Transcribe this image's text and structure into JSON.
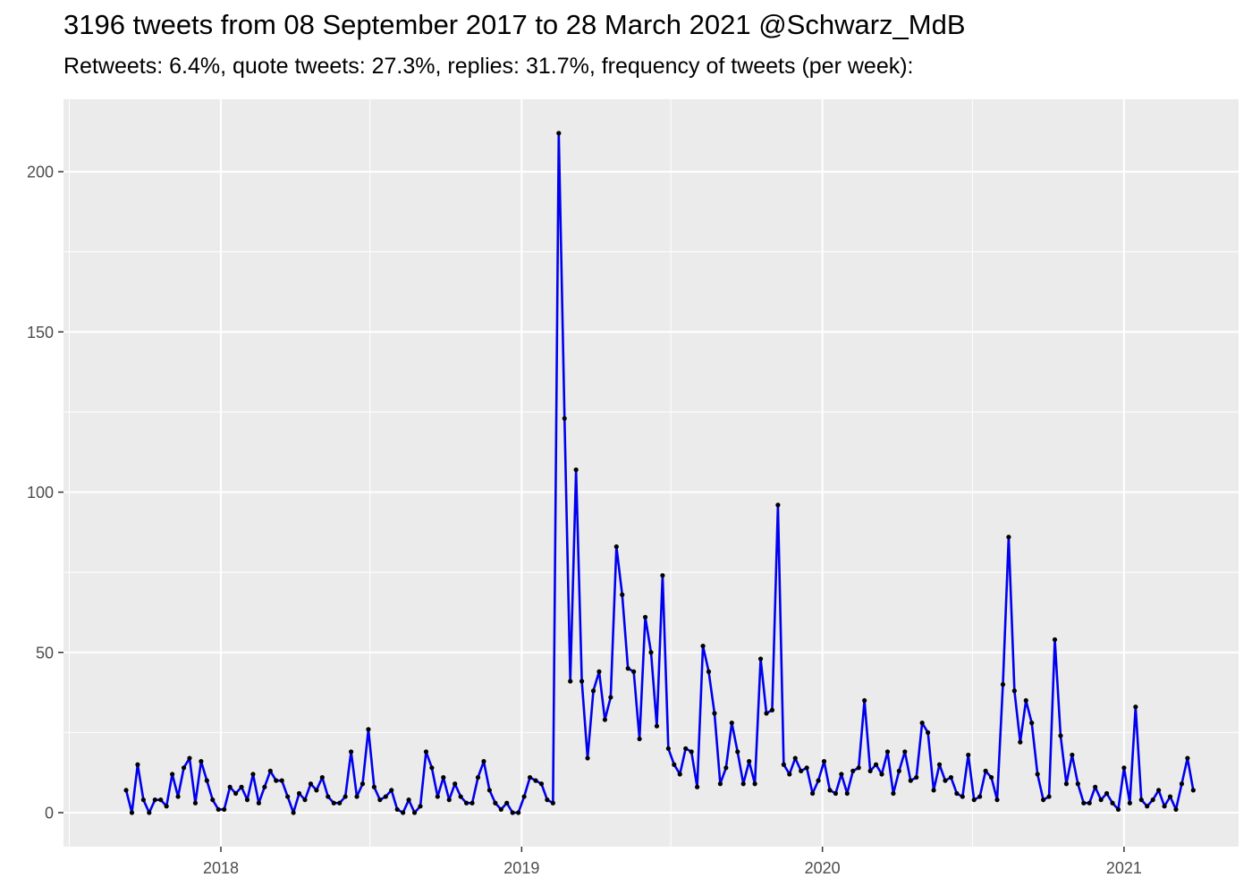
{
  "title": "3196 tweets from 08 September 2017 to 28 March 2021 @Schwarz_MdB",
  "subtitle": "Retweets: 6.4%, quote tweets: 27.3%, replies: 31.7%, frequency of tweets (per week):",
  "chart_data": {
    "type": "line",
    "title": "3196 tweets from 08 September 2017 to 28 March 2021 @Schwarz_MdB",
    "subtitle": "Retweets: 6.4%, quote tweets: 27.3%, replies: 31.7%, frequency of tweets (per week):",
    "xlabel": "",
    "ylabel": "",
    "x_start": "2017-09-08",
    "x_interval": "1 week",
    "xlim": [
      "2017-06-24",
      "2021-05-20"
    ],
    "ylim": [
      -10.6,
      222.6
    ],
    "x_ticks": [
      "2018",
      "2019",
      "2020",
      "2021"
    ],
    "y_ticks": [
      0,
      50,
      100,
      150,
      200
    ],
    "grid": true,
    "line_color": "#0000EE",
    "point_color": "#000000",
    "panel_background": "#EBEBEB",
    "series": [
      {
        "values": [
          7,
          0,
          15,
          4,
          0,
          4,
          4,
          2,
          12,
          5,
          14,
          17,
          3,
          16,
          10,
          4,
          1,
          1,
          8,
          6,
          8,
          4,
          12,
          3,
          8,
          13,
          10,
          10,
          5,
          0,
          6,
          4,
          9,
          7,
          11,
          5,
          3,
          3,
          5,
          19,
          5,
          9,
          26,
          8,
          4,
          5,
          7,
          1,
          0,
          4,
          0,
          2,
          19,
          14,
          5,
          11,
          4,
          9,
          5,
          3,
          3,
          11,
          16,
          7,
          3,
          1,
          3,
          0,
          0,
          5,
          11,
          10,
          9,
          4,
          3,
          212,
          123,
          41,
          107,
          41,
          17,
          38,
          44,
          29,
          36,
          83,
          68,
          45,
          44,
          23,
          61,
          50,
          27,
          74,
          20,
          15,
          12,
          20,
          19,
          8,
          52,
          44,
          31,
          9,
          14,
          28,
          19,
          9,
          16,
          9,
          48,
          31,
          32,
          96,
          15,
          12,
          17,
          13,
          14,
          6,
          10,
          16,
          7,
          6,
          12,
          6,
          13,
          14,
          35,
          13,
          15,
          12,
          19,
          6,
          13,
          19,
          10,
          11,
          28,
          25,
          7,
          15,
          10,
          11,
          6,
          5,
          18,
          4,
          5,
          13,
          11,
          4,
          40,
          86,
          38,
          22,
          35,
          28,
          12,
          4,
          5,
          54,
          24,
          9,
          18,
          9,
          3,
          3,
          8,
          4,
          6,
          3,
          1,
          14,
          3,
          33,
          4,
          2,
          4,
          7,
          2,
          5,
          1,
          9,
          17,
          7
        ]
      }
    ]
  }
}
